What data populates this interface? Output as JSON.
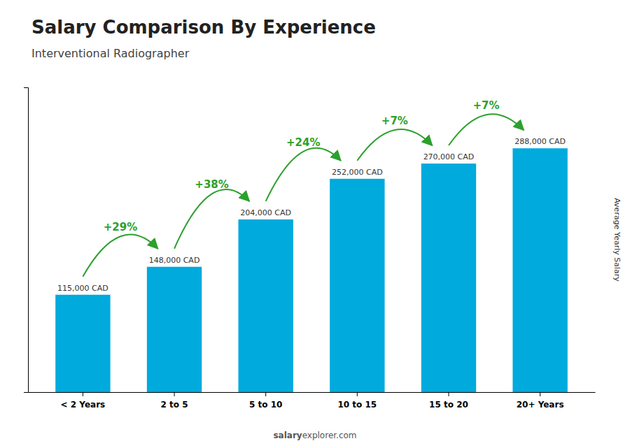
{
  "chart_data": {
    "type": "bar",
    "title": "Salary Comparison By Experience",
    "subtitle": "Interventional Radiographer",
    "ylabel": "Average Yearly Salary",
    "categories": [
      "< 2 Years",
      "2 to 5",
      "5 to 10",
      "10 to 15",
      "15 to 20",
      "20+ Years"
    ],
    "values": [
      115000,
      148000,
      204000,
      252000,
      270000,
      288000
    ],
    "value_labels": [
      "115,000 CAD",
      "148,000 CAD",
      "204,000 CAD",
      "252,000 CAD",
      "270,000 CAD",
      "288,000 CAD"
    ],
    "data_labels": true,
    "annotations": [
      "+29%",
      "+38%",
      "+24%",
      "+7%",
      "+7%"
    ],
    "watermark": [
      "salary",
      "explorer.com"
    ],
    "color": "#00AADD",
    "ylim": [
      0,
      360000
    ],
    "yticks": [],
    "grid": false,
    "tick_labels": "x"
  }
}
